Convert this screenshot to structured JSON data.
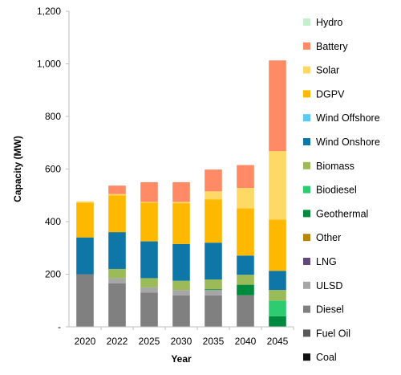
{
  "chart_data": {
    "type": "bar",
    "stacked": true,
    "xlabel": "Year",
    "ylabel": "Capacity (MW)",
    "ylim": [
      0,
      1200
    ],
    "yticks": [
      0,
      200,
      400,
      600,
      800,
      1000,
      1200
    ],
    "ytick_labels": [
      "-",
      "200",
      "400",
      "600",
      "800",
      "1,000",
      "1,200"
    ],
    "grid": false,
    "legend_position": "right",
    "categories": [
      "2020",
      "2022",
      "2025",
      "2030",
      "2035",
      "2040",
      "2045"
    ],
    "series": [
      {
        "name": "Coal",
        "color": "#111111",
        "values": [
          0,
          0,
          0,
          0,
          0,
          0,
          0
        ]
      },
      {
        "name": "Fuel Oil",
        "color": "#595959",
        "values": [
          0,
          0,
          0,
          0,
          0,
          0,
          0
        ]
      },
      {
        "name": "Diesel",
        "color": "#808080",
        "values": [
          200,
          165,
          130,
          120,
          120,
          120,
          0
        ]
      },
      {
        "name": "ULSD",
        "color": "#a6a6a6",
        "values": [
          0,
          20,
          20,
          20,
          20,
          0,
          0
        ]
      },
      {
        "name": "LNG",
        "color": "#604a7b",
        "values": [
          0,
          0,
          0,
          0,
          0,
          0,
          0
        ]
      },
      {
        "name": "Other",
        "color": "#b8860b",
        "values": [
          0,
          0,
          0,
          0,
          0,
          0,
          0
        ]
      },
      {
        "name": "Geothermal",
        "color": "#008a3e",
        "values": [
          0,
          0,
          0,
          0,
          3,
          40,
          40
        ]
      },
      {
        "name": "Biodiesel",
        "color": "#2ecc71",
        "values": [
          0,
          0,
          0,
          0,
          0,
          0,
          60
        ]
      },
      {
        "name": "Biomass",
        "color": "#9bbb59",
        "values": [
          0,
          35,
          35,
          35,
          37,
          38,
          40
        ]
      },
      {
        "name": "Wind Onshore",
        "color": "#0e77a8",
        "values": [
          140,
          140,
          140,
          140,
          140,
          73,
          73
        ]
      },
      {
        "name": "Wind Offshore",
        "color": "#5bc8f5",
        "values": [
          0,
          0,
          0,
          0,
          0,
          0,
          0
        ]
      },
      {
        "name": "DGPV",
        "color": "#ffb800",
        "values": [
          132,
          140,
          147,
          155,
          165,
          180,
          195
        ]
      },
      {
        "name": "Solar",
        "color": "#ffd966",
        "values": [
          5,
          5,
          3,
          5,
          30,
          77,
          260
        ]
      },
      {
        "name": "Battery",
        "color": "#ff8a65",
        "values": [
          0,
          32,
          75,
          75,
          83,
          87,
          345
        ]
      },
      {
        "name": "Hydro",
        "color": "#c6efce",
        "values": [
          0,
          0,
          0,
          0,
          0,
          0,
          0
        ]
      }
    ]
  }
}
